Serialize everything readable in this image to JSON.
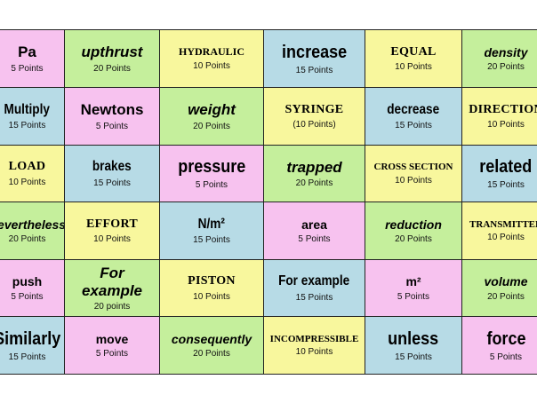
{
  "cards": [
    {
      "word": "Pa",
      "points": "5 Points",
      "color": "pink",
      "style": "s-sans"
    },
    {
      "word": "upthrust",
      "points": "20 Points",
      "color": "green",
      "style": "s-italic"
    },
    {
      "word": "HYDRAULIC",
      "points": "10 Points",
      "color": "yellow",
      "style": "s-serif-caps-sm"
    },
    {
      "word": "increase",
      "points": "15 Points",
      "color": "blue",
      "style": "s-big"
    },
    {
      "word": "EQUAL",
      "points": "10 Points",
      "color": "yellow",
      "style": "s-serif-caps"
    },
    {
      "word": "density",
      "points": "20 Points",
      "color": "green",
      "style": "s-italic-sm"
    },
    {
      "word": "Multiply",
      "points": "15 Points",
      "color": "blue",
      "style": "s-condensed"
    },
    {
      "word": "Newtons",
      "points": "5 Points",
      "color": "pink",
      "style": "s-sans"
    },
    {
      "word": "weight",
      "points": "20 Points",
      "color": "green",
      "style": "s-italic"
    },
    {
      "word": "SYRINGE",
      "points": "(10 Points)",
      "color": "yellow",
      "style": "s-serif-caps"
    },
    {
      "word": "decrease",
      "points": "15 Points",
      "color": "blue",
      "style": "s-condensed"
    },
    {
      "word": "DIRECTION",
      "points": "10 Points",
      "color": "yellow",
      "style": "s-serif-caps"
    },
    {
      "word": "LOAD",
      "points": "10 Points",
      "color": "yellow",
      "style": "s-serif-caps"
    },
    {
      "word": "brakes",
      "points": "15 Points",
      "color": "blue",
      "style": "s-condensed"
    },
    {
      "word": "pressure",
      "points": "5 Points",
      "color": "pink",
      "style": "s-big"
    },
    {
      "word": "trapped",
      "points": "20 Points",
      "color": "green",
      "style": "s-italic"
    },
    {
      "word": "CROSS SECTION",
      "points": "10 Points",
      "color": "yellow",
      "style": "s-serif-sm"
    },
    {
      "word": "related",
      "points": "15 Points",
      "color": "blue",
      "style": "s-big"
    },
    {
      "word": "Nevertheless",
      "points": "20 Points",
      "color": "green",
      "style": "s-italic-sm"
    },
    {
      "word": "EFFORT",
      "points": "10 Points",
      "color": "yellow",
      "style": "s-serif-caps"
    },
    {
      "word": "N/m²",
      "points": "15 Points",
      "color": "blue",
      "style": "s-condensed"
    },
    {
      "word": "area",
      "points": "5 Points",
      "color": "pink",
      "style": "s-plain"
    },
    {
      "word": "reduction",
      "points": "20 Points",
      "color": "green",
      "style": "s-italic-sm"
    },
    {
      "word": "TRANSMITTED",
      "points": "10 Points",
      "color": "yellow",
      "style": "s-serif-sm"
    },
    {
      "word": "push",
      "points": "5 Points",
      "color": "pink",
      "style": "s-plain"
    },
    {
      "word": "For\nexample",
      "points": "20 points",
      "color": "green",
      "style": "s-italic"
    },
    {
      "word": "PISTON",
      "points": "10 Points",
      "color": "yellow",
      "style": "s-serif-caps"
    },
    {
      "word": "For example",
      "points": "15 Points",
      "color": "blue",
      "style": "s-condensed"
    },
    {
      "word": "m²",
      "points": "5 Points",
      "color": "pink",
      "style": "s-plain"
    },
    {
      "word": "volume",
      "points": "20 Points",
      "color": "green",
      "style": "s-italic-sm"
    },
    {
      "word": "Similarly",
      "points": "15 Points",
      "color": "blue",
      "style": "s-big"
    },
    {
      "word": "move",
      "points": "5 Points",
      "color": "pink",
      "style": "s-plain"
    },
    {
      "word": "consequently",
      "points": "20 Points",
      "color": "green",
      "style": "s-italic-sm"
    },
    {
      "word": "INCOMPRESSIBLE",
      "points": "10 Points",
      "color": "yellow",
      "style": "s-serif-sm"
    },
    {
      "word": "unless",
      "points": "15 Points",
      "color": "blue",
      "style": "s-big"
    },
    {
      "word": "force",
      "points": "5 Points",
      "color": "pink",
      "style": "s-big"
    }
  ]
}
